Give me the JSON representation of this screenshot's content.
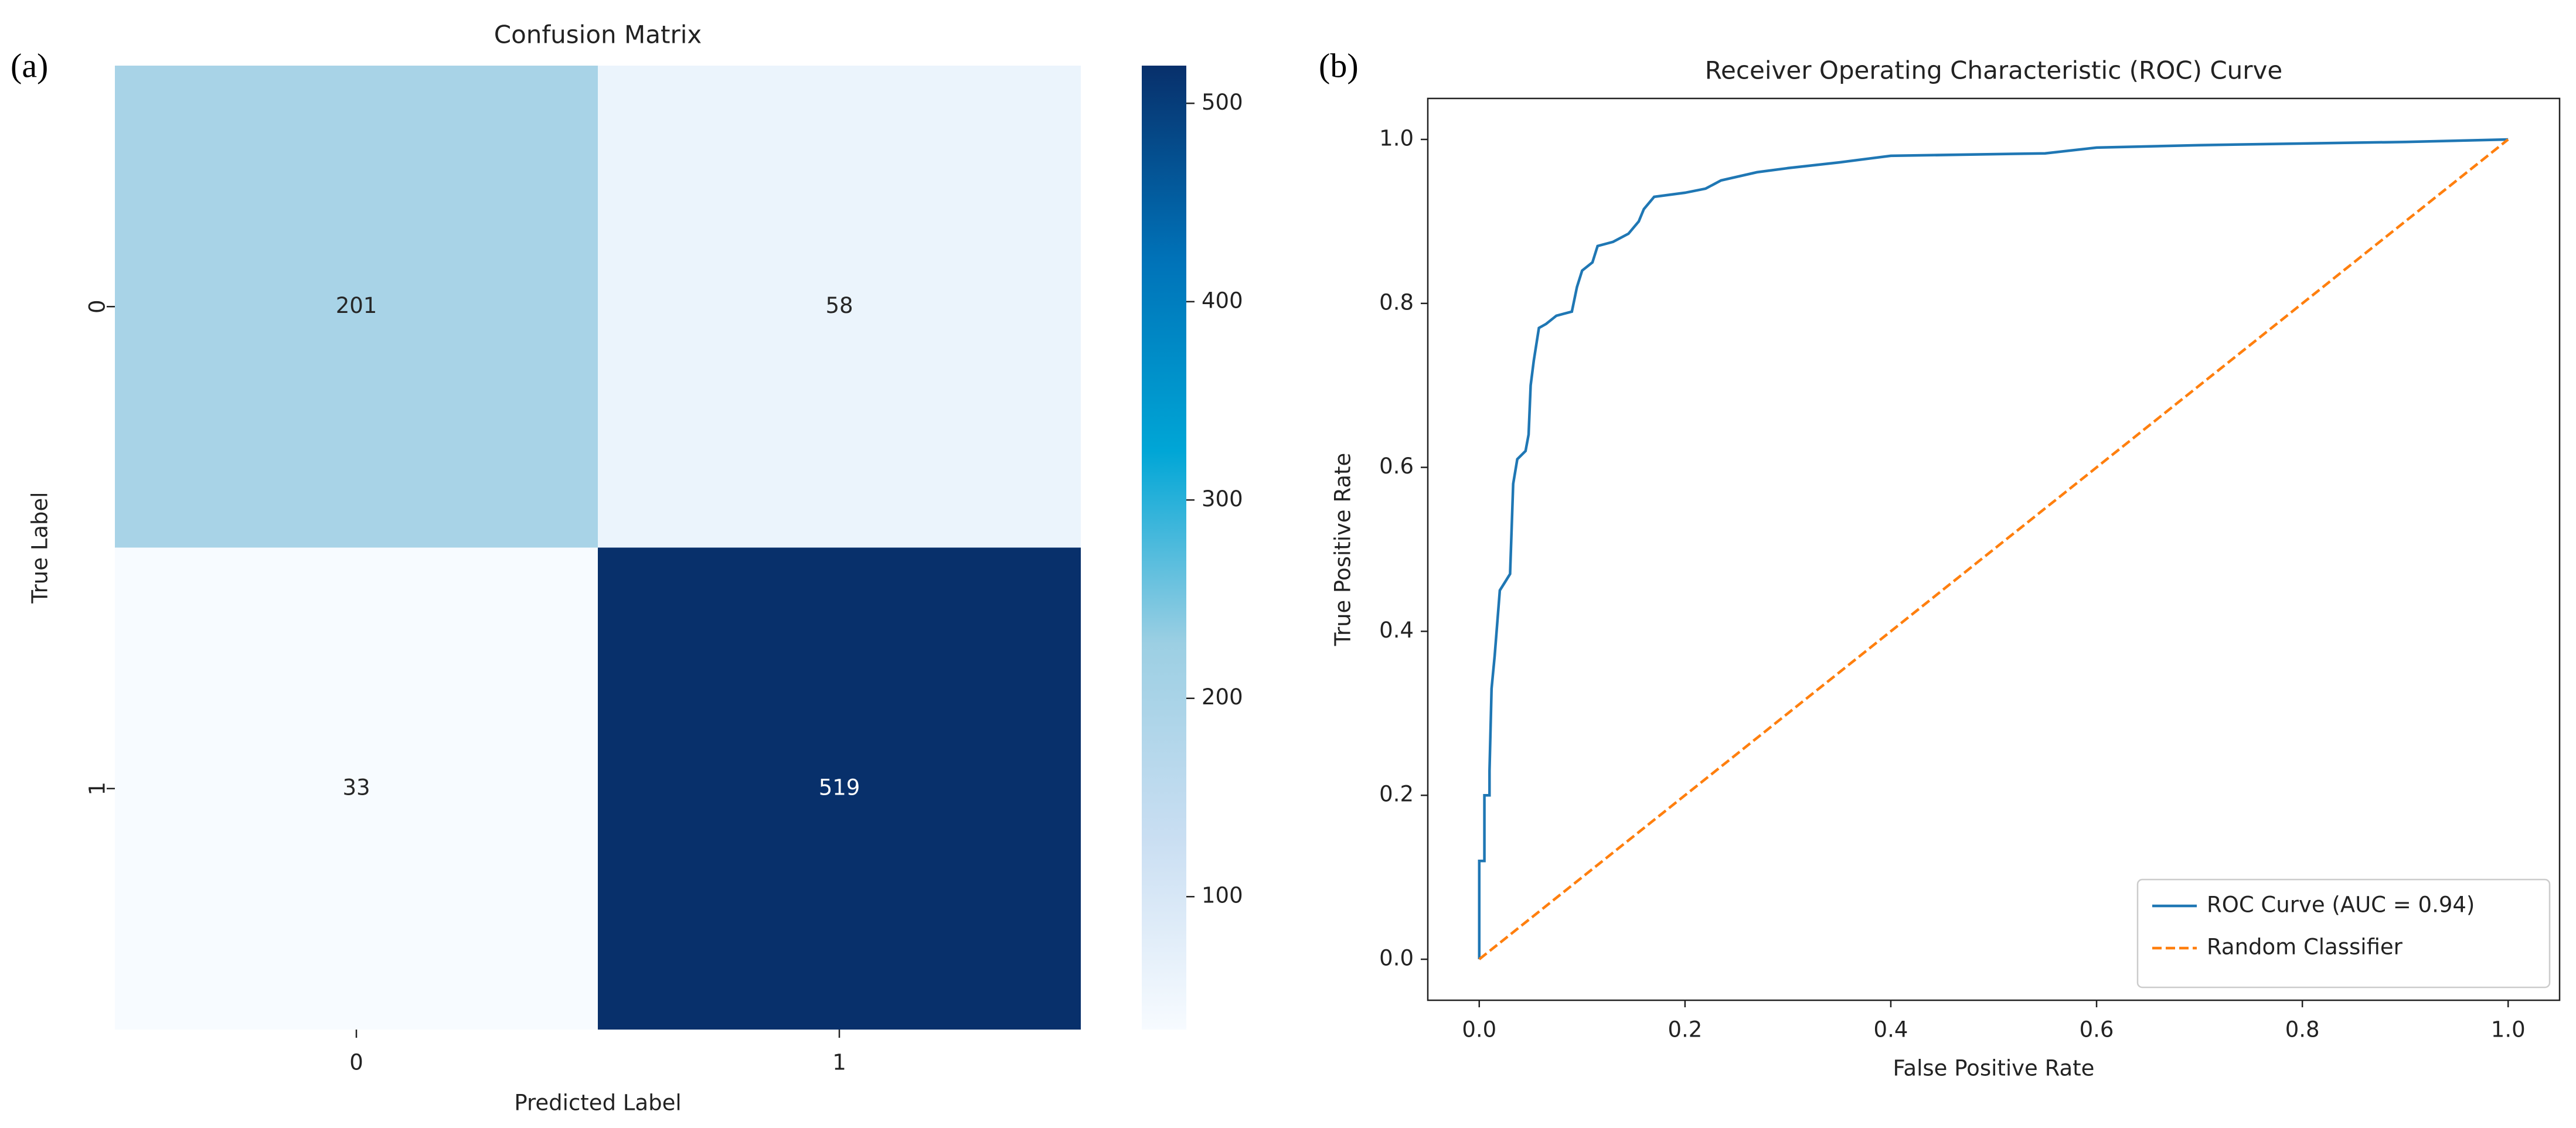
{
  "chart_data": [
    {
      "type": "heatmap",
      "panel_label": "(a)",
      "title": "Confusion Matrix",
      "xlabel": "Predicted Label",
      "ylabel": "True Label",
      "x_categories": [
        "0",
        "1"
      ],
      "y_categories": [
        "0",
        "1"
      ],
      "values": [
        [
          201,
          58
        ],
        [
          33,
          519
        ]
      ],
      "colorscale": [
        "#f7fbff",
        "#c9def2",
        "#9ccfe3",
        "#00a6d6",
        "#0072b8",
        "#08306b"
      ],
      "clim": [
        33,
        519
      ],
      "cticks": [
        100,
        200,
        300,
        400,
        500
      ]
    },
    {
      "type": "line",
      "panel_label": "(b)",
      "title": "Receiver Operating Characteristic (ROC) Curve",
      "xlabel": "False Positive Rate",
      "ylabel": "True Positive Rate",
      "xlim": [
        -0.05,
        1.05
      ],
      "ylim": [
        -0.05,
        1.05
      ],
      "xticks": [
        {
          "value": 0,
          "label": "0.0"
        },
        {
          "value": 0.2,
          "label": "0.2"
        },
        {
          "value": 0.4,
          "label": "0.4"
        },
        {
          "value": 0.6,
          "label": "0.6"
        },
        {
          "value": 0.8,
          "label": "0.8"
        },
        {
          "value": 1,
          "label": "1.0"
        }
      ],
      "yticks": [
        {
          "value": 0,
          "label": "0.0"
        },
        {
          "value": 0.2,
          "label": "0.2"
        },
        {
          "value": 0.4,
          "label": "0.4"
        },
        {
          "value": 0.6,
          "label": "0.6"
        },
        {
          "value": 0.8,
          "label": "0.8"
        },
        {
          "value": 1,
          "label": "1.0"
        }
      ],
      "legend": "lower right",
      "series": [
        {
          "name": "ROC Curve (AUC = 0.94)",
          "color": "#1f77b4",
          "dash": "solid",
          "x": [
            0,
            0,
            0.005,
            0.005,
            0.01,
            0.01,
            0.012,
            0.015,
            0.02,
            0.025,
            0.03,
            0.033,
            0.037,
            0.045,
            0.048,
            0.05,
            0.053,
            0.058,
            0.065,
            0.075,
            0.09,
            0.095,
            0.1,
            0.11,
            0.115,
            0.13,
            0.145,
            0.155,
            0.16,
            0.17,
            0.2,
            0.22,
            0.235,
            0.27,
            0.3,
            0.35,
            0.4,
            0.55,
            0.6,
            0.7,
            0.9,
            1
          ],
          "values": [
            0,
            0.12,
            0.12,
            0.2,
            0.2,
            0.23,
            0.33,
            0.37,
            0.45,
            0.46,
            0.47,
            0.58,
            0.61,
            0.62,
            0.64,
            0.7,
            0.73,
            0.77,
            0.775,
            0.785,
            0.79,
            0.82,
            0.84,
            0.85,
            0.87,
            0.875,
            0.885,
            0.9,
            0.915,
            0.93,
            0.935,
            0.94,
            0.95,
            0.96,
            0.965,
            0.972,
            0.98,
            0.983,
            0.99,
            0.993,
            0.997,
            1
          ]
        },
        {
          "name": "Random Classifier",
          "color": "#ff7f0e",
          "dash": "dashed",
          "x": [
            0,
            1
          ],
          "values": [
            0,
            1
          ]
        }
      ]
    }
  ]
}
